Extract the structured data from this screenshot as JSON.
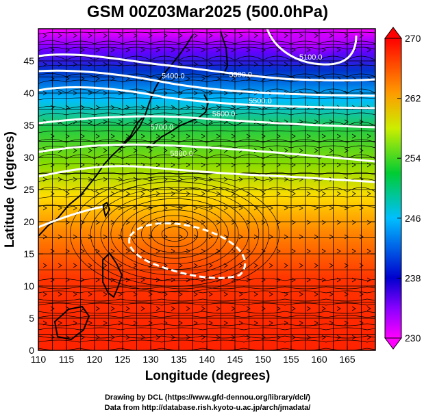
{
  "chart_data": {
    "type": "heatmap",
    "title": "GSM 00Z03Mar2025 (500.0hPa)",
    "xlabel": "Longitude (degrees)",
    "ylabel": "Latitude  (degrees)",
    "xlim": [
      110,
      170
    ],
    "ylim": [
      0,
      50
    ],
    "x_ticks": [
      110,
      115,
      120,
      125,
      130,
      135,
      140,
      145,
      150,
      155,
      160,
      165
    ],
    "y_ticks": [
      0,
      5,
      10,
      15,
      20,
      25,
      30,
      35,
      40,
      45
    ],
    "grid": true,
    "grid_spacing_deg": 2.5,
    "colorbar": {
      "min": 230,
      "max": 270,
      "ticks": [
        230,
        238,
        246,
        254,
        262,
        270
      ],
      "placement": "right",
      "colors": [
        "#ff00ff",
        "#0000cd",
        "#00bfff",
        "#00cc33",
        "#ccee00",
        "#ff9900",
        "#ff0000"
      ]
    },
    "contour_labels": [
      {
        "text": "5100.0",
        "lon": 158.5,
        "lat": 45.2
      },
      {
        "text": "5300.0",
        "lon": 146.0,
        "lat": 42.5
      },
      {
        "text": "5400.0",
        "lon": 134.0,
        "lat": 42.3
      },
      {
        "text": "5500.0",
        "lon": 149.5,
        "lat": 38.4
      },
      {
        "text": "5600.0",
        "lon": 143.0,
        "lat": 36.4
      },
      {
        "text": "5700.0",
        "lon": 132.0,
        "lat": 34.3
      },
      {
        "text": "5800.0",
        "lon": 135.5,
        "lat": 30.2
      }
    ],
    "credits": [
      "Drawing by DCL (https://www.gfd-dennou.org/library/dcl/)",
      "Data from http://database.rish.kyoto-u.ac.jp/arch/jmadata/"
    ]
  }
}
